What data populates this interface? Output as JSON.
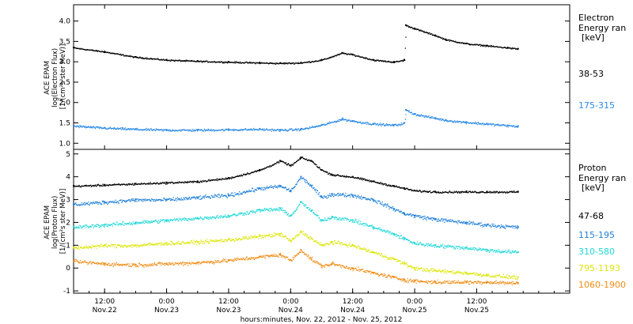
{
  "figure": {
    "xlabel": "hours:minutes, Nov. 22, 2012 - Nov. 25, 2012"
  },
  "x_ticks": [
    {
      "time": "12:00",
      "date": "Nov.22"
    },
    {
      "time": "0:00",
      "date": "Nov.23"
    },
    {
      "time": "12:00",
      "date": "Nov.23"
    },
    {
      "time": "0:00",
      "date": "Nov.24"
    },
    {
      "time": "12:00",
      "date": "Nov.24"
    },
    {
      "time": "0:00",
      "date": "Nov.25"
    },
    {
      "time": "12:00",
      "date": "Nov.25"
    }
  ],
  "chart_data": [
    {
      "type": "scatter",
      "panel": "electron",
      "ylabel_lines": [
        "ACE EPAM",
        "log(Electron Flux)",
        "[1/(cm²s ster MeV)]"
      ],
      "xlim_hours": [
        0,
        96
      ],
      "ylim": [
        0.85,
        4.4
      ],
      "yticks": [
        1.0,
        1.5,
        2.0,
        2.5,
        3.0,
        3.5,
        4.0
      ],
      "ytick_labels": [
        "1.0",
        "1.5",
        "2.0",
        "2.5",
        "3.0",
        "3.5",
        "4.0"
      ],
      "legend_title": [
        "Electron",
        "Energy ran",
        "[keV]"
      ],
      "series": [
        {
          "name": "38-53",
          "color": "#000000",
          "x": [
            0,
            6,
            12,
            18,
            24,
            30,
            36,
            40,
            44,
            48,
            52,
            54,
            58,
            62,
            64,
            64.3,
            66,
            70,
            72,
            76,
            80,
            84,
            86
          ],
          "y": [
            3.35,
            3.25,
            3.12,
            3.05,
            3.02,
            3.0,
            2.98,
            2.97,
            2.98,
            3.05,
            3.22,
            3.18,
            3.05,
            3.0,
            3.05,
            3.9,
            3.82,
            3.65,
            3.55,
            3.45,
            3.4,
            3.35,
            3.32
          ]
        },
        {
          "name": "175-315",
          "color": "#2a8ae6",
          "x": [
            0,
            6,
            12,
            18,
            24,
            30,
            36,
            40,
            44,
            48,
            52,
            54,
            58,
            62,
            64,
            64.3,
            66,
            70,
            72,
            76,
            80,
            84,
            86
          ],
          "y": [
            1.43,
            1.38,
            1.35,
            1.33,
            1.33,
            1.34,
            1.35,
            1.33,
            1.35,
            1.45,
            1.6,
            1.55,
            1.48,
            1.45,
            1.5,
            1.82,
            1.72,
            1.62,
            1.57,
            1.52,
            1.48,
            1.44,
            1.42
          ]
        }
      ]
    },
    {
      "type": "scatter",
      "panel": "proton",
      "ylabel_lines": [
        "ACE EPAM",
        "log(Proton Flux)",
        "[1/(cm²s ster MeV)]"
      ],
      "xlim_hours": [
        0,
        96
      ],
      "ylim": [
        -1.1,
        5.2
      ],
      "yticks": [
        -1,
        0,
        1,
        2,
        3,
        4,
        5
      ],
      "ytick_labels": [
        "-1",
        "0",
        "1",
        "2",
        "3",
        "4",
        "5"
      ],
      "legend_title": [
        "Proton",
        "Energy ran",
        "[keV]"
      ],
      "series": [
        {
          "name": "47-68",
          "color": "#000000",
          "x": [
            0,
            6,
            12,
            18,
            24,
            30,
            36,
            40,
            42,
            44,
            46,
            48,
            50,
            54,
            58,
            62,
            64,
            66,
            70,
            76,
            80,
            86
          ],
          "y": [
            3.6,
            3.65,
            3.7,
            3.75,
            3.8,
            3.95,
            4.3,
            4.7,
            4.5,
            4.85,
            4.7,
            4.3,
            4.1,
            4.0,
            3.8,
            3.6,
            3.5,
            3.4,
            3.35,
            3.35,
            3.35,
            3.35
          ]
        },
        {
          "name": "115-195",
          "color": "#1e7fd8",
          "x": [
            0,
            6,
            12,
            18,
            24,
            30,
            36,
            40,
            42,
            44,
            46,
            48,
            50,
            54,
            58,
            62,
            64,
            66,
            70,
            76,
            80,
            86
          ],
          "y": [
            2.8,
            2.9,
            3.0,
            3.0,
            3.1,
            3.2,
            3.5,
            3.6,
            3.4,
            4.0,
            3.6,
            3.1,
            3.25,
            3.2,
            3.0,
            2.6,
            2.4,
            2.3,
            2.15,
            2.0,
            1.9,
            1.8
          ]
        },
        {
          "name": "310-580",
          "color": "#20d8d8",
          "x": [
            0,
            6,
            12,
            18,
            24,
            30,
            36,
            40,
            42,
            44,
            46,
            48,
            50,
            54,
            58,
            62,
            64,
            66,
            70,
            76,
            80,
            86
          ],
          "y": [
            1.8,
            1.9,
            2.0,
            2.1,
            2.2,
            2.3,
            2.55,
            2.6,
            2.3,
            2.9,
            2.5,
            2.1,
            2.25,
            2.1,
            1.8,
            1.5,
            1.3,
            1.1,
            1.0,
            0.9,
            0.8,
            0.7
          ]
        },
        {
          "name": "795-1193",
          "color": "#dde60a",
          "x": [
            0,
            6,
            12,
            18,
            24,
            30,
            36,
            40,
            42,
            44,
            46,
            48,
            50,
            54,
            58,
            62,
            64,
            66,
            70,
            76,
            80,
            86
          ],
          "y": [
            0.9,
            1.0,
            1.0,
            1.1,
            1.15,
            1.25,
            1.4,
            1.5,
            1.2,
            1.6,
            1.3,
            1.0,
            1.15,
            1.0,
            0.7,
            0.4,
            0.2,
            0.0,
            -0.1,
            -0.2,
            -0.3,
            -0.4
          ]
        },
        {
          "name": "1060-1900",
          "color": "#f08c14",
          "x": [
            0,
            6,
            12,
            18,
            24,
            30,
            36,
            40,
            42,
            44,
            46,
            48,
            50,
            54,
            58,
            62,
            64,
            66,
            70,
            76,
            80,
            86
          ],
          "y": [
            0.3,
            0.2,
            0.15,
            0.2,
            0.25,
            0.35,
            0.5,
            0.6,
            0.35,
            0.8,
            0.4,
            0.1,
            0.2,
            0.0,
            -0.2,
            -0.4,
            -0.5,
            -0.55,
            -0.6,
            -0.6,
            -0.6,
            -0.65
          ]
        }
      ]
    }
  ]
}
